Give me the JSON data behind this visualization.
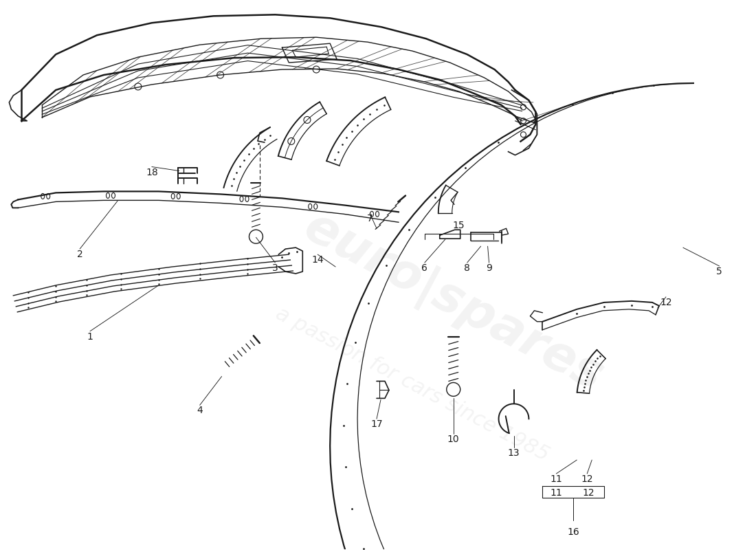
{
  "bg_color": "#ffffff",
  "lc": "#1a1a1a",
  "lw_outer": 1.5,
  "lw_inner": 0.9,
  "lw_thin": 0.6,
  "label_fontsize": 10,
  "watermark1": "euro|spares",
  "watermark2": "a passion for cars since 1985",
  "wm_alpha": 0.18,
  "wm_fontsize1": 52,
  "wm_fontsize2": 22,
  "wm_rotation": -28,
  "wm_color": "#c0c0c0"
}
